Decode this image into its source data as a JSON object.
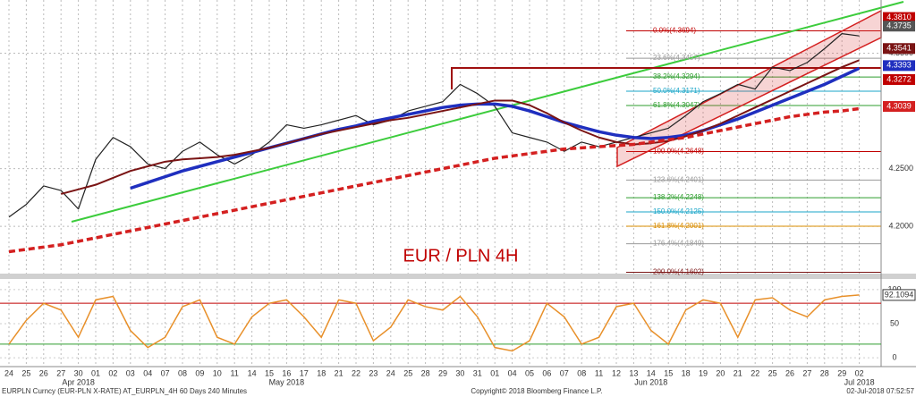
{
  "chart_data": {
    "type": "line",
    "title": "EUR / PLN 4H",
    "categories": [
      "24",
      "25",
      "26",
      "27",
      "30",
      "01",
      "02",
      "03",
      "04",
      "07",
      "08",
      "09",
      "10",
      "11",
      "14",
      "15",
      "16",
      "17",
      "18",
      "21",
      "22",
      "23",
      "24",
      "25",
      "28",
      "29",
      "30",
      "31",
      "01",
      "04",
      "05",
      "06",
      "07",
      "08",
      "11",
      "12",
      "13",
      "14",
      "15",
      "18",
      "19",
      "20",
      "21",
      "22",
      "25",
      "26",
      "27",
      "28",
      "29",
      "02"
    ],
    "months": [
      "Apr 2018",
      "May 2018",
      "Jun 2018",
      "Jul 2018"
    ],
    "ylim": [
      4.159,
      4.3946
    ],
    "yticks": [
      {
        "value": 4.2,
        "label": "4.2000"
      },
      {
        "value": 4.25,
        "label": "4.2500"
      },
      {
        "value": 4.35,
        "label": "4.3500"
      }
    ],
    "grid": true,
    "series": [
      {
        "color": "#222222",
        "width": 1.2,
        "values": [
          4.208,
          4.219,
          4.235,
          4.231,
          4.215,
          4.258,
          4.277,
          4.269,
          4.254,
          4.25,
          4.265,
          4.273,
          4.262,
          4.254,
          4.262,
          4.273,
          4.288,
          4.285,
          4.288,
          4.292,
          4.296,
          4.288,
          4.292,
          4.3,
          4.304,
          4.308,
          4.323,
          4.315,
          4.304,
          4.281,
          4.277,
          4.273,
          4.265,
          4.273,
          4.269,
          4.273,
          4.277,
          4.281,
          4.285,
          4.296,
          4.308,
          4.315,
          4.323,
          4.319,
          4.338,
          4.335,
          4.342,
          4.354,
          4.367,
          4.365
        ]
      },
      {
        "color": "#1f2fbf",
        "width": 3.5,
        "values": [
          null,
          null,
          null,
          null,
          null,
          null,
          null,
          4.233,
          4.238,
          4.243,
          4.248,
          4.252,
          4.256,
          4.26,
          4.264,
          4.268,
          4.272,
          4.276,
          4.28,
          4.284,
          4.287,
          4.291,
          4.294,
          4.297,
          4.3,
          4.303,
          4.305,
          4.306,
          4.306,
          4.304,
          4.3,
          4.295,
          4.29,
          4.286,
          4.282,
          4.279,
          4.277,
          4.276,
          4.277,
          4.279,
          4.283,
          4.288,
          4.293,
          4.299,
          4.305,
          4.311,
          4.317,
          4.323,
          4.33,
          4.337
        ]
      },
      {
        "color": "#7a1414",
        "width": 2,
        "values": [
          null,
          null,
          null,
          4.228,
          4.232,
          4.236,
          4.242,
          4.248,
          4.252,
          4.256,
          4.258,
          4.259,
          4.26,
          4.262,
          4.265,
          4.268,
          4.272,
          4.276,
          4.28,
          4.283,
          4.286,
          4.289,
          4.292,
          4.294,
          4.297,
          4.3,
          4.303,
          4.306,
          4.309,
          4.309,
          4.305,
          4.298,
          4.29,
          4.283,
          4.277,
          4.273,
          4.271,
          4.272,
          4.274,
          4.278,
          4.283,
          4.289,
          4.296,
          4.303,
          4.31,
          4.317,
          4.324,
          4.331,
          4.338,
          4.344
        ]
      },
      {
        "color": "#d42020",
        "width": 3.5,
        "dash": true,
        "values": [
          4.178,
          4.18,
          4.182,
          4.184,
          4.187,
          4.19,
          4.193,
          4.196,
          4.199,
          4.202,
          4.205,
          4.208,
          4.211,
          4.214,
          4.217,
          4.22,
          4.223,
          4.226,
          4.229,
          4.232,
          4.235,
          4.238,
          4.241,
          4.244,
          4.247,
          4.25,
          4.253,
          4.256,
          4.259,
          4.261,
          4.263,
          4.265,
          4.267,
          4.268,
          4.269,
          4.27,
          4.271,
          4.273,
          4.275,
          4.277,
          4.28,
          4.283,
          4.286,
          4.289,
          4.292,
          4.295,
          4.297,
          4.299,
          4.3,
          4.302
        ]
      }
    ],
    "fib_levels": [
      {
        "label": "0.0%(4.3694)",
        "value": 4.3694,
        "color": "#c00000"
      },
      {
        "label": "23.6%(4.3457)",
        "value": 4.3457,
        "color": "#999999"
      },
      {
        "label": "38.2%(4.3294)",
        "value": 4.3294,
        "color": "#2e9e2e"
      },
      {
        "label": "50.0%(4.3171)",
        "value": 4.3171,
        "color": "#1aa6c8"
      },
      {
        "label": "61.8%(4.3047)",
        "value": 4.3047,
        "color": "#2e9e2e"
      },
      {
        "label": "100.0%(4.2648)",
        "value": 4.2648,
        "color": "#c00000"
      },
      {
        "label": "123.6%(4.2401)",
        "value": 4.2401,
        "color": "#999999"
      },
      {
        "label": "138.2%(4.2248)",
        "value": 4.2248,
        "color": "#2e9e2e"
      },
      {
        "label": "150.0%(4.2125)",
        "value": 4.2125,
        "color": "#1aa6c8"
      },
      {
        "label": "161.8%(4.2001)",
        "value": 4.2001,
        "color": "#d98c00"
      },
      {
        "label": "176.4%(4.1849)",
        "value": 4.1849,
        "color": "#999999"
      },
      {
        "label": "200.0%(4.1602)",
        "value": 4.1602,
        "color": "#7a1414"
      }
    ],
    "price_labels": [
      {
        "value": 4.381,
        "label": "4.3810",
        "color": "#c00000"
      },
      {
        "value": 4.3735,
        "label": "4.3735",
        "color": "#555555"
      },
      {
        "value": 4.3541,
        "label": "4.3541",
        "color": "#7a1414"
      },
      {
        "value": 4.3393,
        "label": "4.3393",
        "color": "#1f2fbf"
      },
      {
        "value": 4.3272,
        "label": "4.3272",
        "color": "#c00000"
      },
      {
        "value": 4.3039,
        "label": "4.3039",
        "color": "#d42020"
      }
    ],
    "oscillator": {
      "ylim": [
        -13,
        113
      ],
      "yticks": [
        0,
        50,
        100
      ],
      "levels": [
        80,
        20
      ],
      "color": "#e8902a",
      "values": [
        20,
        55,
        80,
        70,
        30,
        85,
        90,
        40,
        15,
        30,
        75,
        85,
        30,
        20,
        60,
        80,
        85,
        60,
        30,
        85,
        80,
        25,
        45,
        85,
        75,
        70,
        90,
        60,
        15,
        10,
        25,
        80,
        60,
        20,
        30,
        75,
        80,
        40,
        20,
        70,
        85,
        80,
        30,
        85,
        88,
        70,
        60,
        85,
        90,
        92.1094
      ],
      "last": {
        "value": 92.1094,
        "label": "92.1094"
      }
    },
    "footer": {
      "left": "EURPLN Curncy (EUR-PLN X-RATE) AT_EURPLN_4H 60 Days 240 Minutes",
      "center": "Copyright© 2018 Bloomberg Finance L.P.",
      "right": "02-Jul-2018 07:52:57"
    }
  }
}
